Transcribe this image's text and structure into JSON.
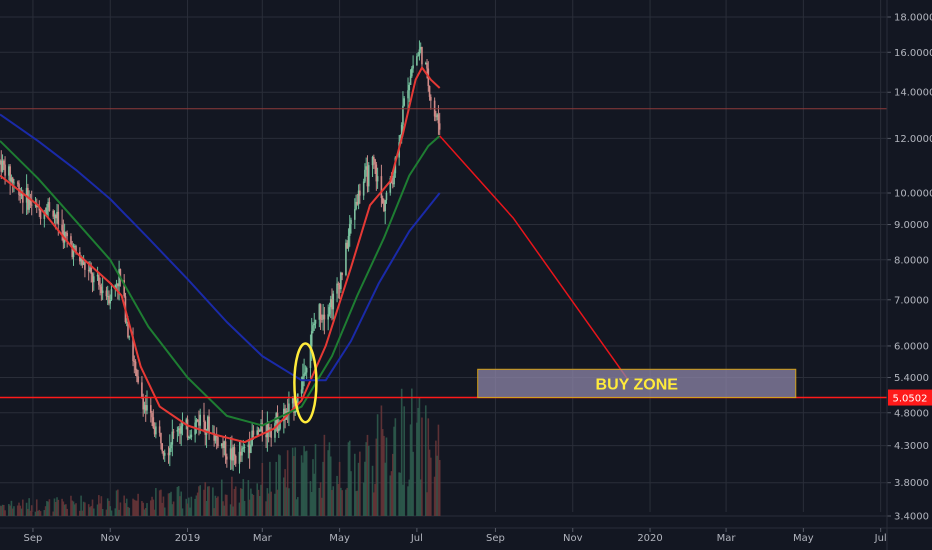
{
  "chart_data": {
    "type": "candlestick",
    "title": "",
    "price_scale": "log",
    "ylim": [
      3.4,
      18.0
    ],
    "y_ticks": [
      {
        "value": 18.0,
        "label": "18.0000"
      },
      {
        "value": 16.0,
        "label": "16.0000"
      },
      {
        "value": 14.0,
        "label": "14.0000"
      },
      {
        "value": 12.0,
        "label": "12.0000"
      },
      {
        "value": 10.0,
        "label": "10.0000"
      },
      {
        "value": 9.0,
        "label": "9.0000"
      },
      {
        "value": 8.0,
        "label": "8.0000"
      },
      {
        "value": 7.0,
        "label": "7.0000"
      },
      {
        "value": 6.0,
        "label": "6.0000"
      },
      {
        "value": 5.4,
        "label": "5.4000"
      },
      {
        "value": 4.8,
        "label": "4.8000"
      },
      {
        "value": 4.3,
        "label": "4.3000"
      },
      {
        "value": 3.8,
        "label": "3.8000"
      },
      {
        "value": 3.4,
        "label": "3.4000"
      }
    ],
    "x_ticks": [
      {
        "date": "2018-09-01",
        "label": "Sep"
      },
      {
        "date": "2018-11-01",
        "label": "Nov"
      },
      {
        "date": "2019-01-01",
        "label": "2019"
      },
      {
        "date": "2019-03-01",
        "label": "Mar"
      },
      {
        "date": "2019-05-01",
        "label": "May"
      },
      {
        "date": "2019-07-01",
        "label": "Jul"
      },
      {
        "date": "2019-09-01",
        "label": "Sep"
      },
      {
        "date": "2019-11-01",
        "label": "Nov"
      },
      {
        "date": "2020-01-01",
        "label": "2020"
      },
      {
        "date": "2020-03-01",
        "label": "Mar"
      },
      {
        "date": "2020-05-01",
        "label": "May"
      },
      {
        "date": "2020-07-01",
        "label": "Jul"
      }
    ],
    "x_range": [
      "2018-08-06",
      "2020-07-06"
    ],
    "price_trend": [
      [
        "2018-08-06",
        11.1
      ],
      [
        "2018-08-15",
        10.5
      ],
      [
        "2018-08-25",
        9.9
      ],
      [
        "2018-09-05",
        9.4
      ],
      [
        "2018-09-15",
        9.6
      ],
      [
        "2018-09-25",
        8.7
      ],
      [
        "2018-10-08",
        8.0
      ],
      [
        "2018-10-20",
        7.4
      ],
      [
        "2018-11-01",
        7.1
      ],
      [
        "2018-11-08",
        7.6
      ],
      [
        "2018-11-15",
        6.4
      ],
      [
        "2018-11-22",
        5.3
      ],
      [
        "2018-11-30",
        4.8
      ],
      [
        "2018-12-08",
        4.5
      ],
      [
        "2018-12-16",
        4.25
      ],
      [
        "2018-12-24",
        4.6
      ],
      [
        "2019-01-02",
        4.5
      ],
      [
        "2019-01-12",
        4.75
      ],
      [
        "2019-01-22",
        4.45
      ],
      [
        "2019-02-02",
        4.2
      ],
      [
        "2019-02-10",
        4.1
      ],
      [
        "2019-02-20",
        4.4
      ],
      [
        "2019-03-02",
        4.55
      ],
      [
        "2019-03-12",
        4.65
      ],
      [
        "2019-03-22",
        4.8
      ],
      [
        "2019-03-30",
        5.1
      ],
      [
        "2019-04-06",
        5.8
      ],
      [
        "2019-04-13",
        6.7
      ],
      [
        "2019-04-20",
        6.8
      ],
      [
        "2019-04-28",
        7.1
      ],
      [
        "2019-05-05",
        8.0
      ],
      [
        "2019-05-12",
        9.5
      ],
      [
        "2019-05-20",
        10.4
      ],
      [
        "2019-05-28",
        11.0
      ],
      [
        "2019-06-04",
        9.6
      ],
      [
        "2019-06-12",
        10.5
      ],
      [
        "2019-06-18",
        12.4
      ],
      [
        "2019-06-24",
        14.5
      ],
      [
        "2019-06-29",
        15.6
      ],
      [
        "2019-07-04",
        16.1
      ],
      [
        "2019-07-09",
        14.8
      ],
      [
        "2019-07-14",
        13.1
      ],
      [
        "2019-07-19",
        12.6
      ]
    ],
    "volume_trend": [
      [
        "2018-09-15",
        0.12
      ],
      [
        "2018-11-15",
        0.18
      ],
      [
        "2019-01-02",
        0.2
      ],
      [
        "2019-02-15",
        0.28
      ],
      [
        "2019-04-10",
        0.55
      ],
      [
        "2019-05-10",
        0.5
      ],
      [
        "2019-06-05",
        0.75
      ],
      [
        "2019-06-25",
        0.9
      ],
      [
        "2019-07-10",
        0.7
      ]
    ],
    "series": [
      {
        "color": "#e53935",
        "points": [
          [
            "2018-08-06",
            10.6
          ],
          [
            "2018-09-05",
            9.6
          ],
          [
            "2018-10-05",
            8.2
          ],
          [
            "2018-11-01",
            7.4
          ],
          [
            "2018-11-10",
            7.1
          ],
          [
            "2018-11-25",
            5.6
          ],
          [
            "2018-12-10",
            4.9
          ],
          [
            "2019-01-01",
            4.6
          ],
          [
            "2019-01-25",
            4.45
          ],
          [
            "2019-02-15",
            4.35
          ],
          [
            "2019-03-10",
            4.55
          ],
          [
            "2019-04-01",
            5.0
          ],
          [
            "2019-04-20",
            6.0
          ],
          [
            "2019-05-10",
            7.8
          ],
          [
            "2019-05-25",
            9.6
          ],
          [
            "2019-06-10",
            10.4
          ],
          [
            "2019-06-20",
            12.2
          ],
          [
            "2019-06-30",
            14.6
          ],
          [
            "2019-07-05",
            15.2
          ],
          [
            "2019-07-12",
            14.6
          ],
          [
            "2019-07-19",
            14.2
          ]
        ]
      },
      {
        "color": "#1e7d32",
        "points": [
          [
            "2018-08-06",
            11.9
          ],
          [
            "2018-09-05",
            10.5
          ],
          [
            "2018-10-05",
            9.1
          ],
          [
            "2018-11-01",
            8.0
          ],
          [
            "2018-12-01",
            6.4
          ],
          [
            "2019-01-01",
            5.4
          ],
          [
            "2019-02-01",
            4.75
          ],
          [
            "2019-03-01",
            4.6
          ],
          [
            "2019-04-01",
            4.9
          ],
          [
            "2019-04-25",
            5.8
          ],
          [
            "2019-05-15",
            7.1
          ],
          [
            "2019-06-05",
            8.6
          ],
          [
            "2019-06-25",
            10.6
          ],
          [
            "2019-07-10",
            11.7
          ],
          [
            "2019-07-19",
            12.1
          ]
        ]
      },
      {
        "color": "#1a2aa8",
        "points": [
          [
            "2018-08-06",
            13.0
          ],
          [
            "2018-09-05",
            11.9
          ],
          [
            "2018-10-05",
            10.8
          ],
          [
            "2018-11-01",
            9.8
          ],
          [
            "2018-12-01",
            8.6
          ],
          [
            "2019-01-01",
            7.5
          ],
          [
            "2019-02-01",
            6.5
          ],
          [
            "2019-03-01",
            5.8
          ],
          [
            "2019-04-01",
            5.35
          ],
          [
            "2019-04-20",
            5.35
          ],
          [
            "2019-05-10",
            6.1
          ],
          [
            "2019-06-01",
            7.4
          ],
          [
            "2019-06-25",
            8.8
          ],
          [
            "2019-07-19",
            10.0
          ]
        ]
      }
    ],
    "annotations": [
      {
        "kind": "horizontal_line",
        "value": 13.25,
        "color": "#8c3a3a"
      },
      {
        "kind": "horizontal_line",
        "value": 5.0502,
        "color": "#ff1a1a",
        "label": "5.0502"
      },
      {
        "kind": "projection_line",
        "color": "#e8151b",
        "points": [
          [
            "2019-07-19",
            12.1
          ],
          [
            "2019-09-15",
            9.2
          ],
          [
            "2019-12-15",
            5.35
          ]
        ]
      },
      {
        "kind": "ellipse",
        "color": "#ffeb3b",
        "center": [
          "2019-04-04",
          5.3
        ],
        "value_span": [
          4.65,
          6.05
        ]
      },
      {
        "kind": "rectangle",
        "label": "BUY ZONE",
        "label_color": "#ffeb3b",
        "fill": "#8e86a8",
        "border": "#d4a017",
        "date_span": [
          "2019-08-18",
          "2020-04-25"
        ],
        "value_span": [
          5.05,
          5.55
        ]
      }
    ]
  }
}
